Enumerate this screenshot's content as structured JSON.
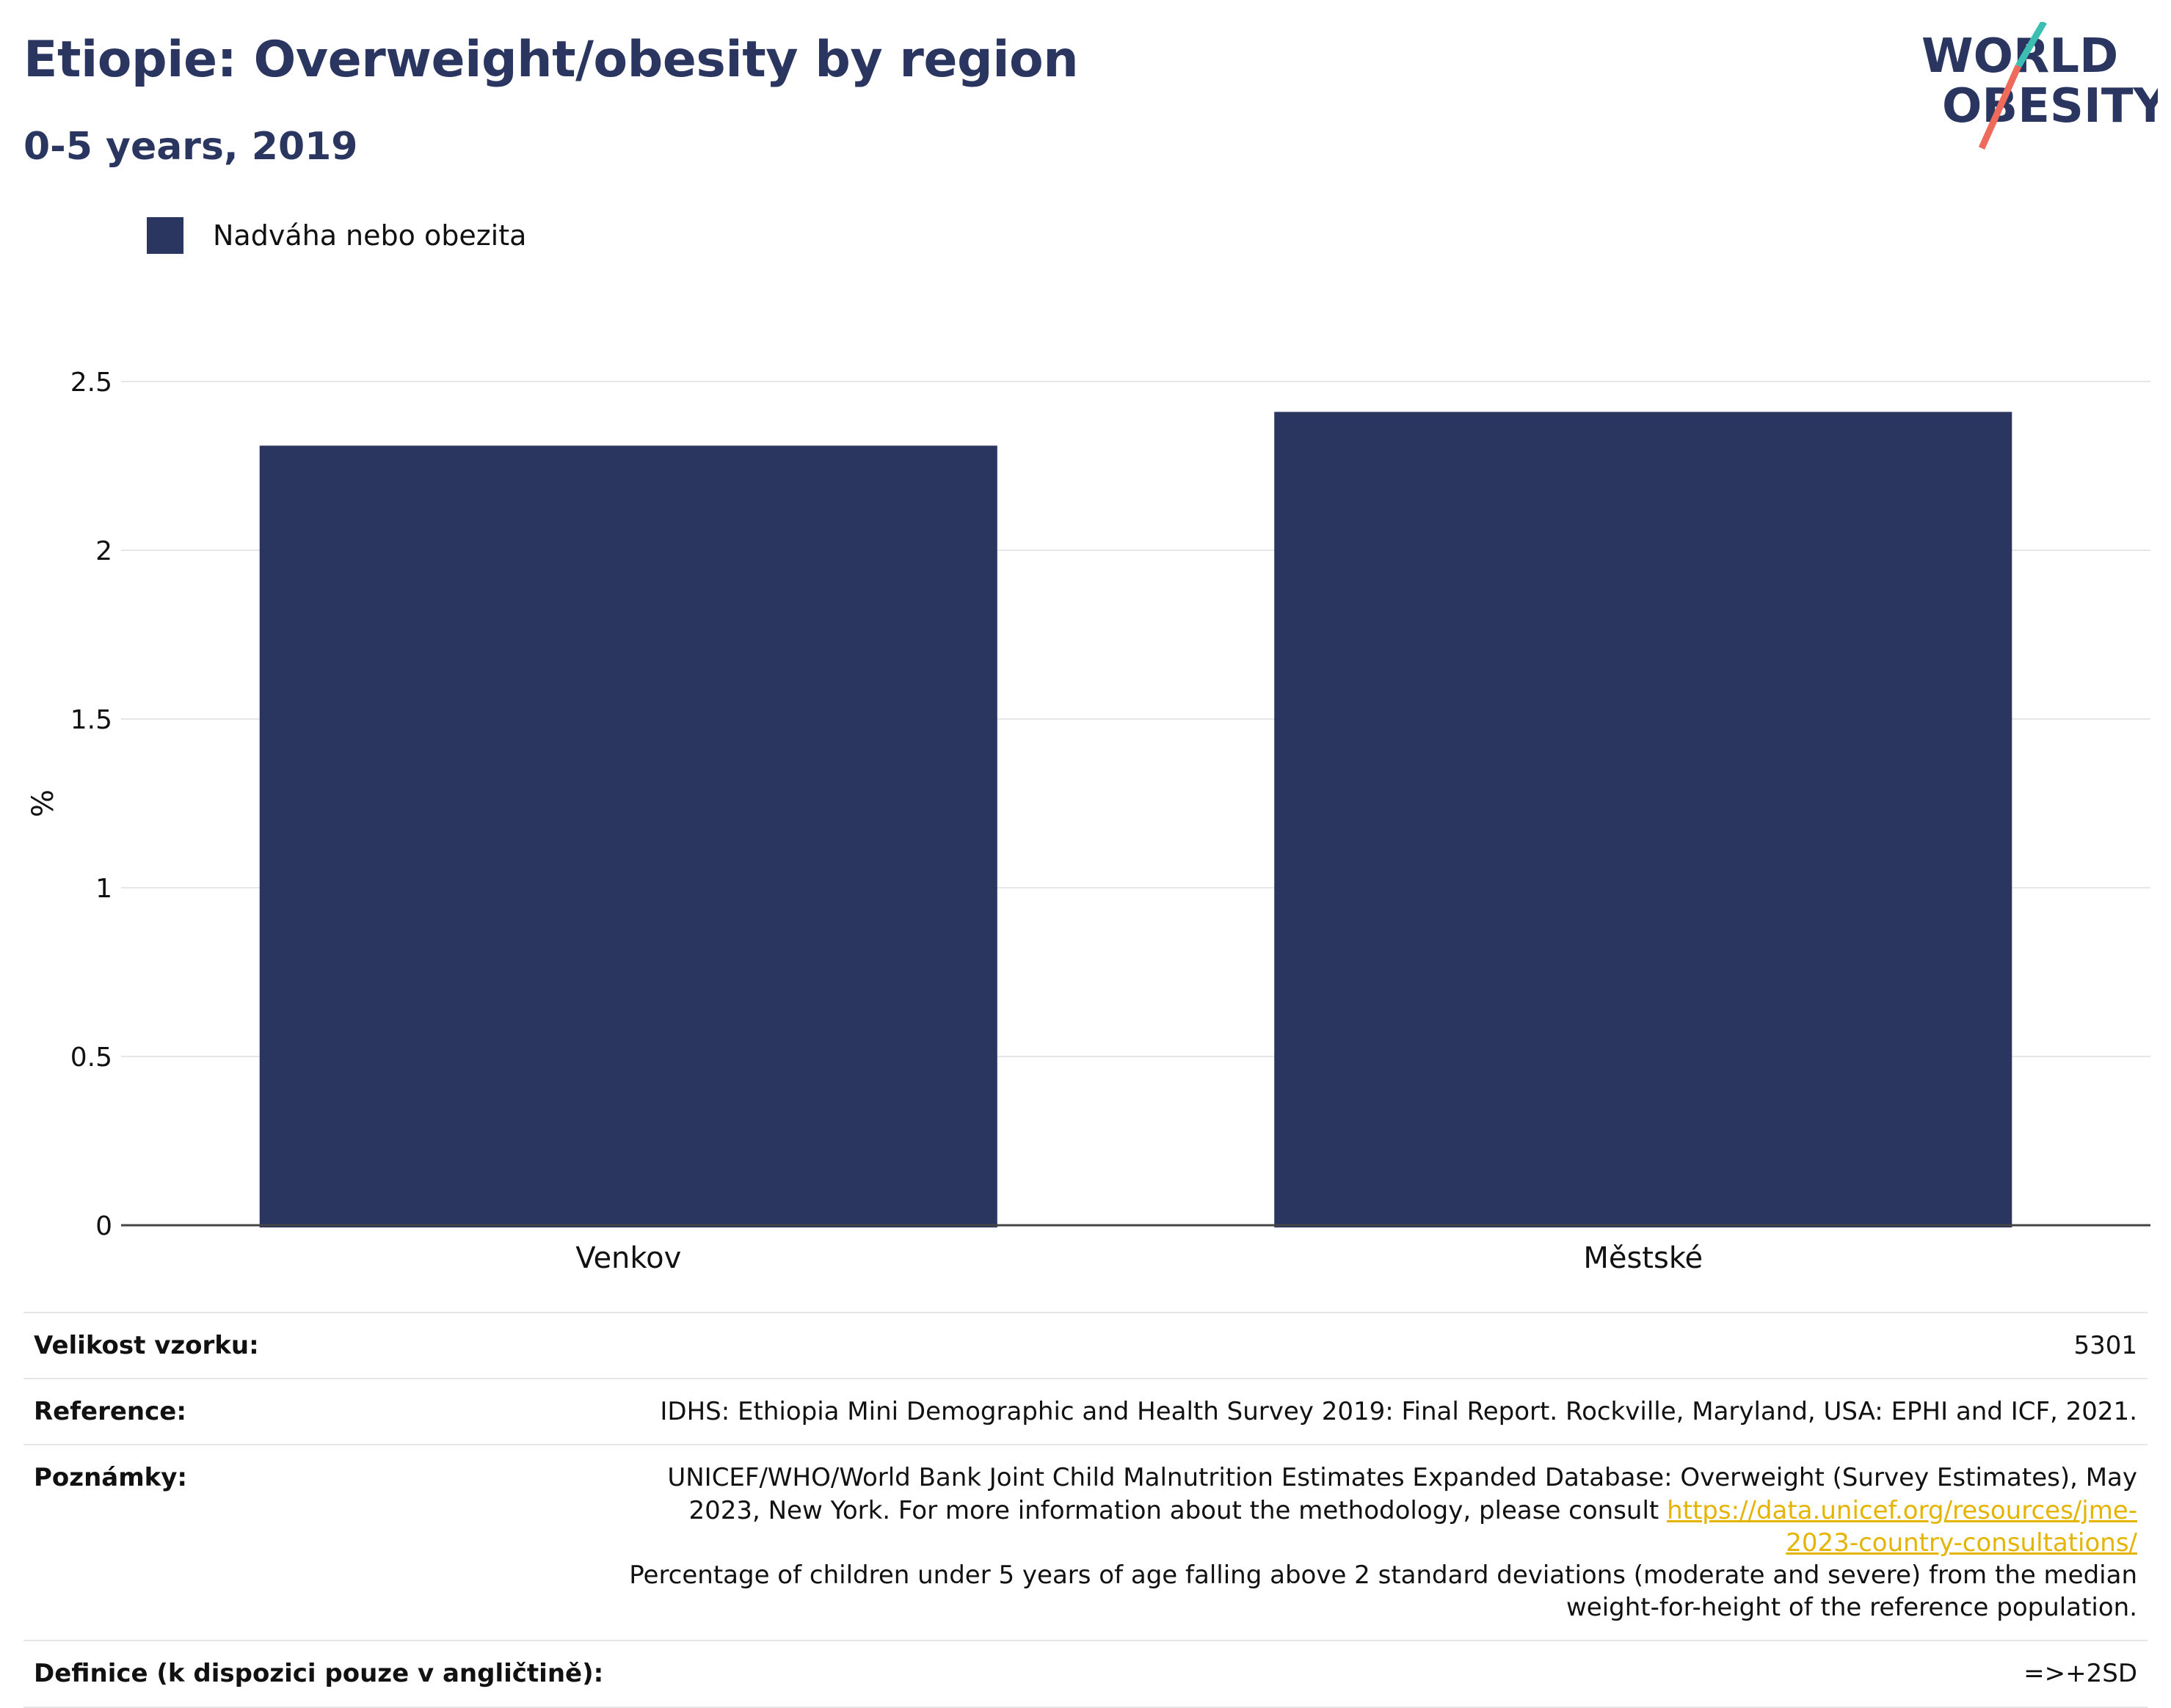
{
  "header": {
    "title": "Etiopie: Overweight/obesity by region",
    "subtitle": "0-5 years, 2019",
    "logo_line1": "WORLD",
    "logo_line2": "OBESITY"
  },
  "colors": {
    "bar": "#2a3660",
    "title": "#2a3660",
    "link": "#e5b400",
    "logo_teal": "#3bbfb3",
    "logo_coral": "#ee6a5a"
  },
  "chart_data": {
    "type": "bar",
    "categories": [
      "Venkov",
      "Městské"
    ],
    "series": [
      {
        "name": "Nadváha nebo obezita",
        "values": [
          2.31,
          2.41
        ]
      }
    ],
    "ylabel": "%",
    "xlabel": "",
    "ylim": [
      0,
      2.5
    ],
    "yticks": [
      "0",
      "0.5",
      "1",
      "1.5",
      "2",
      "2.5"
    ],
    "grid": true,
    "legend": "top-left"
  },
  "info": {
    "sample_label": "Velikost vzorku:",
    "sample_value": "5301",
    "reference_label": "Reference:",
    "reference_value": "IDHS: Ethiopia Mini Demographic and Health Survey 2019: Final Report. Rockville, Maryland, USA: EPHI and ICF, 2021.",
    "notes_label": "Poznámky:",
    "notes_text_before": "UNICEF/WHO/World Bank Joint Child Malnutrition Estimates Expanded Database: Overweight (Survey Estimates), May 2023, New York. For more information about the methodology, please consult",
    "notes_link": "https://data.unicef.org/resources/jme-2023-country-consultations/",
    "notes_text_after": "Percentage of children under 5 years of age falling above 2 standard deviations (moderate and severe) from the median weight-for-height of the reference population.",
    "definition_label": "Definice (k dispozici pouze v angličtině):",
    "definition_value": "=>+2SD"
  }
}
